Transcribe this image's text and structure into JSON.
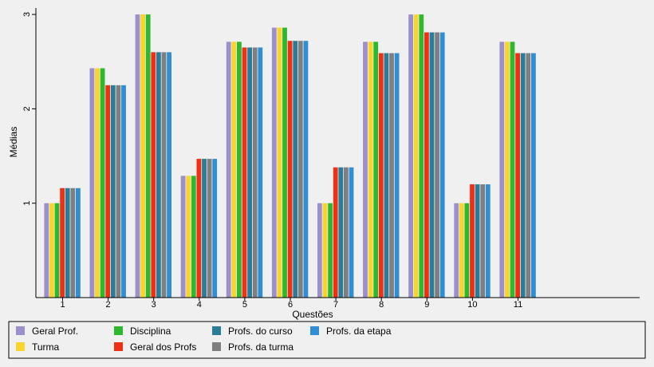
{
  "chart_data": {
    "type": "bar",
    "xlabel": "Questões",
    "ylabel": "Médias",
    "ylim": [
      0,
      3
    ],
    "yticks": [
      "1",
      "2",
      "3"
    ],
    "categories": [
      "1",
      "2",
      "3",
      "4",
      "5",
      "6",
      "7",
      "8",
      "9",
      "10",
      "11"
    ],
    "grid": false,
    "legend_position": "bottom",
    "series": [
      {
        "name": "Geral Prof.",
        "color": "#9b8fcc",
        "values": [
          1.0,
          2.43,
          3.0,
          1.29,
          2.71,
          2.86,
          1.0,
          2.71,
          3.0,
          1.0,
          2.71
        ]
      },
      {
        "name": "Turma",
        "color": "#f8d42c",
        "values": [
          1.0,
          2.43,
          3.0,
          1.29,
          2.71,
          2.86,
          1.0,
          2.71,
          3.0,
          1.0,
          2.71
        ]
      },
      {
        "name": "Disciplina",
        "color": "#2db82d",
        "values": [
          1.0,
          2.43,
          3.0,
          1.29,
          2.71,
          2.86,
          1.0,
          2.71,
          3.0,
          1.0,
          2.71
        ]
      },
      {
        "name": "Geral dos Profs",
        "color": "#f03012",
        "values": [
          1.16,
          2.25,
          2.6,
          1.47,
          2.65,
          2.72,
          1.38,
          2.59,
          2.81,
          1.2,
          2.59
        ]
      },
      {
        "name": "Profs. do curso",
        "color": "#2a7d98",
        "values": [
          1.16,
          2.25,
          2.6,
          1.47,
          2.65,
          2.72,
          1.38,
          2.59,
          2.81,
          1.2,
          2.59
        ]
      },
      {
        "name": "Profs. da turma",
        "color": "#7f7f7f",
        "values": [
          1.16,
          2.25,
          2.6,
          1.47,
          2.65,
          2.72,
          1.38,
          2.59,
          2.81,
          1.2,
          2.59
        ]
      },
      {
        "name": "Profs. da etapa",
        "color": "#2f8fd2",
        "values": [
          1.16,
          2.25,
          2.6,
          1.47,
          2.65,
          2.72,
          1.38,
          2.59,
          2.81,
          1.2,
          2.59
        ]
      }
    ]
  }
}
